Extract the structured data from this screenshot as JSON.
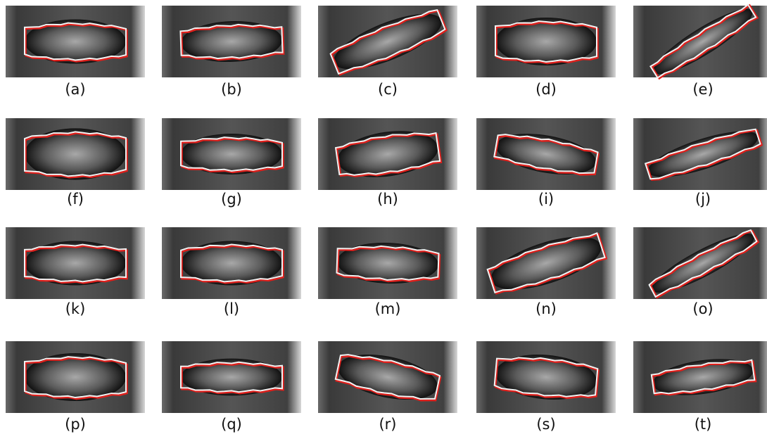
{
  "panels": [
    {
      "label": "(a)"
    },
    {
      "label": "(b)"
    },
    {
      "label": "(c)"
    },
    {
      "label": "(d)"
    },
    {
      "label": "(e)"
    },
    {
      "label": "(f)"
    },
    {
      "label": "(g)"
    },
    {
      "label": "(h)"
    },
    {
      "label": "(i)"
    },
    {
      "label": "(j)"
    },
    {
      "label": "(k)"
    },
    {
      "label": "(l)"
    },
    {
      "label": "(m)"
    },
    {
      "label": "(n)"
    },
    {
      "label": "(o)"
    },
    {
      "label": "(p)"
    },
    {
      "label": "(q)"
    },
    {
      "label": "(r)"
    },
    {
      "label": "(s)"
    },
    {
      "label": "(t)"
    }
  ]
}
